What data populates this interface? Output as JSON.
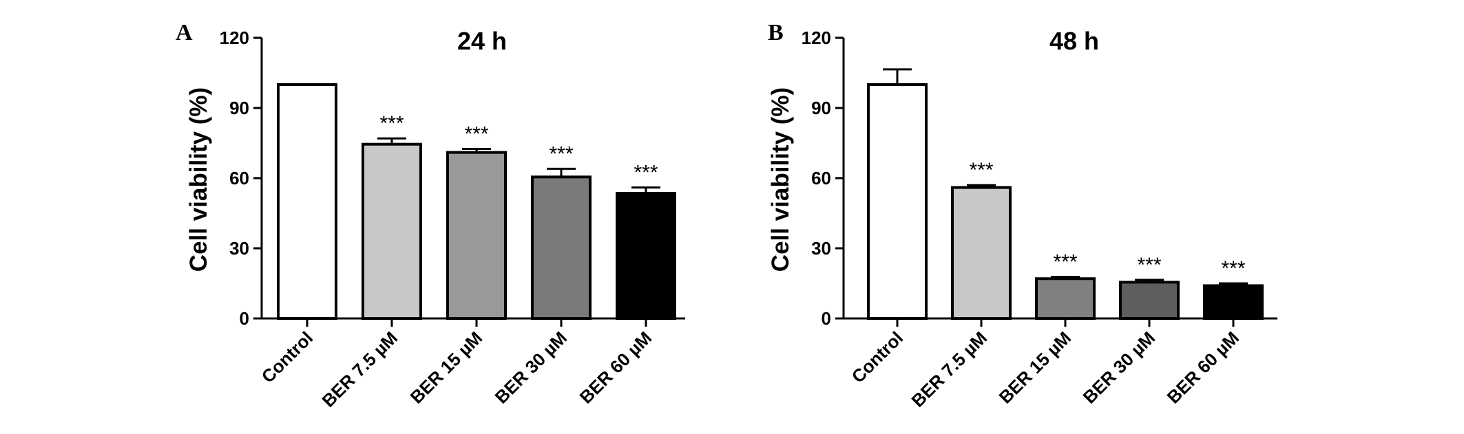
{
  "chart_data": [
    {
      "type": "bar",
      "panel": "A",
      "title": "24 h",
      "ylabel": "Cell viability (%)",
      "xlabel": "",
      "ylim": [
        0,
        120
      ],
      "yticks": [
        "0",
        "30",
        "60",
        "90",
        "120"
      ],
      "categories": [
        "Control",
        "BER 7.5 µM",
        "BER 15 µM",
        "BER 30 µM",
        "BER 60 µM"
      ],
      "values": [
        100,
        74.5,
        71,
        60.5,
        53.5
      ],
      "errors": [
        0,
        2.5,
        1.5,
        3.5,
        2.5
      ],
      "significance": [
        "",
        "***",
        "***",
        "***",
        "***"
      ],
      "colors": [
        "#ffffff",
        "#c8c8c8",
        "#999999",
        "#7a7a7a",
        "#000000"
      ]
    },
    {
      "type": "bar",
      "panel": "B",
      "title": "48 h",
      "ylabel": "Cell viability (%)",
      "xlabel": "",
      "ylim": [
        0,
        120
      ],
      "yticks": [
        "0",
        "30",
        "60",
        "90",
        "120"
      ],
      "categories": [
        "Control",
        "BER 7.5 µM",
        "BER 15 µM",
        "BER 30 µM",
        "BER 60 µM"
      ],
      "values": [
        100,
        56,
        17,
        15.5,
        14
      ],
      "errors": [
        6.5,
        1,
        0.8,
        1,
        1
      ],
      "significance": [
        "",
        "***",
        "***",
        "***",
        "***"
      ],
      "colors": [
        "#ffffff",
        "#c8c8c8",
        "#808080",
        "#5e5e5e",
        "#000000"
      ]
    }
  ]
}
